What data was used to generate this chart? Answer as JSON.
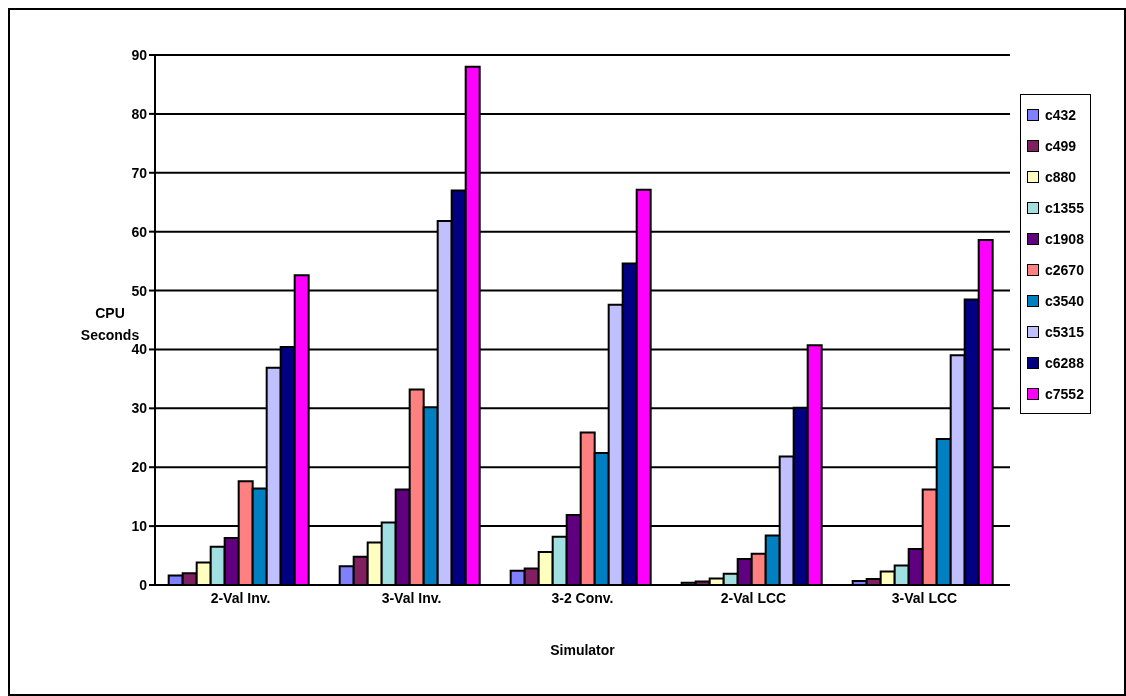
{
  "chart_data": {
    "type": "bar",
    "xlabel": "Simulator",
    "ylabel": "CPU Seconds",
    "categories": [
      "2-Val Inv.",
      "3-Val Inv.",
      "3-2 Conv.",
      "2-Val LCC",
      "3-Val LCC"
    ],
    "series": [
      {
        "name": "c432",
        "color": "#8080ff",
        "values": [
          1.6,
          3.2,
          2.4,
          0.4,
          0.7
        ]
      },
      {
        "name": "c499",
        "color": "#802060",
        "values": [
          2.0,
          4.8,
          2.8,
          0.6,
          1.0
        ]
      },
      {
        "name": "c880",
        "color": "#ffffc0",
        "values": [
          3.8,
          7.2,
          5.6,
          1.1,
          2.3
        ]
      },
      {
        "name": "c1355",
        "color": "#a0e0e0",
        "values": [
          6.5,
          10.6,
          8.2,
          1.9,
          3.3
        ]
      },
      {
        "name": "c1908",
        "color": "#600080",
        "values": [
          8.0,
          16.2,
          11.9,
          4.4,
          6.1
        ]
      },
      {
        "name": "c2670",
        "color": "#ff8080",
        "values": [
          17.6,
          33.2,
          25.9,
          5.3,
          16.2
        ]
      },
      {
        "name": "c3540",
        "color": "#0080c0",
        "values": [
          16.4,
          30.2,
          22.4,
          8.4,
          24.8
        ]
      },
      {
        "name": "c5315",
        "color": "#c0c0ff",
        "values": [
          36.9,
          61.8,
          47.6,
          21.8,
          39.0
        ]
      },
      {
        "name": "c6288",
        "color": "#000080",
        "values": [
          40.4,
          67.0,
          54.6,
          30.1,
          48.5
        ]
      },
      {
        "name": "c7552",
        "color": "#ff00ff",
        "values": [
          52.6,
          88.0,
          67.1,
          40.7,
          58.6
        ]
      }
    ],
    "ylim": [
      0,
      90
    ],
    "yticks": [
      0,
      10,
      20,
      30,
      40,
      50,
      60,
      70,
      80,
      90
    ],
    "grid": "y",
    "legend": "right"
  }
}
